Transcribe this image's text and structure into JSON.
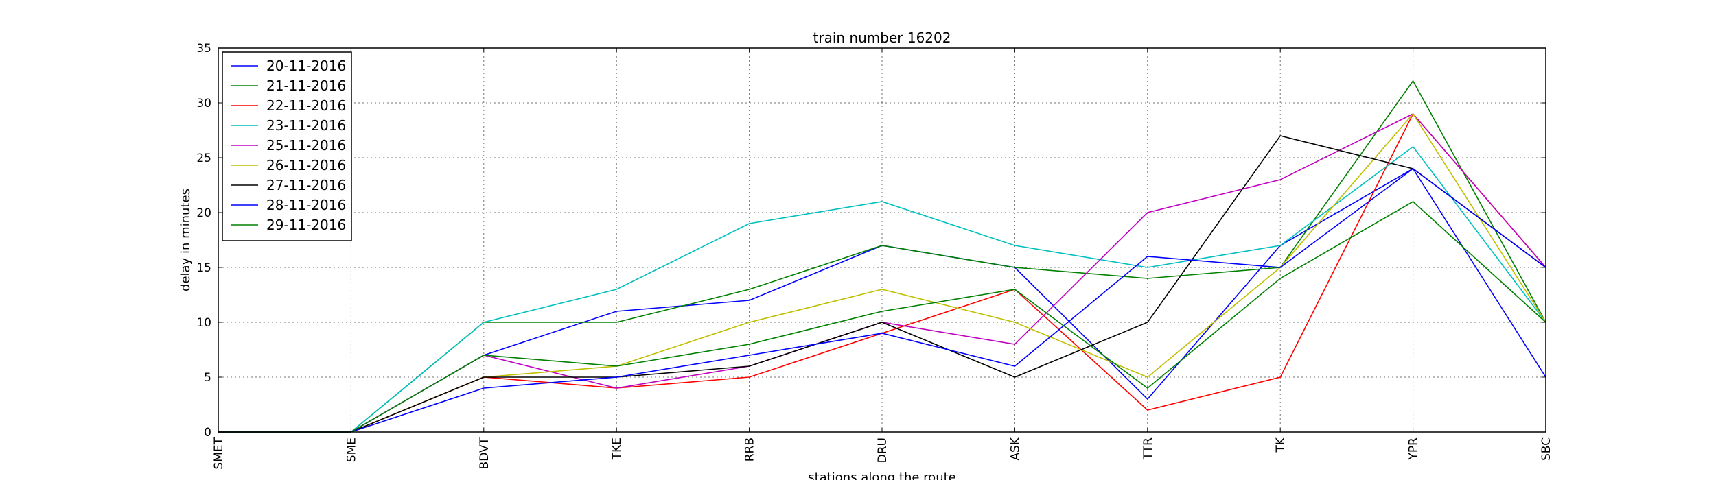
{
  "chart_data": {
    "type": "line",
    "title": "train number 16202",
    "xlabel": "stations along the route",
    "ylabel": "delay in minutes",
    "categories": [
      "SMET",
      "SME",
      "BDVT",
      "TKE",
      "RRB",
      "DRU",
      "ASK",
      "TTR",
      "TK",
      "YPR",
      "SBC"
    ],
    "ylim": [
      0,
      35
    ],
    "yticks": [
      0,
      5,
      10,
      15,
      20,
      25,
      30,
      35
    ],
    "grid": true,
    "legend_position": "upper-left",
    "series": [
      {
        "name": "20-11-2016",
        "color": "#0000ff",
        "values": [
          0,
          0,
          7,
          11,
          12,
          17,
          15,
          3,
          17,
          24,
          5
        ]
      },
      {
        "name": "21-11-2016",
        "color": "#008000",
        "values": [
          0,
          0,
          10,
          10,
          13,
          17,
          15,
          14,
          15,
          32,
          10
        ]
      },
      {
        "name": "22-11-2016",
        "color": "#ff0000",
        "values": [
          0,
          0,
          5,
          4,
          5,
          9,
          13,
          2,
          5,
          29,
          15
        ]
      },
      {
        "name": "23-11-2016",
        "color": "#00bfbf",
        "values": [
          0,
          0,
          10,
          13,
          19,
          21,
          17,
          15,
          17,
          26,
          10
        ]
      },
      {
        "name": "25-11-2016",
        "color": "#bf00bf",
        "values": [
          0,
          0,
          7,
          4,
          6,
          10,
          8,
          20,
          23,
          29,
          15
        ]
      },
      {
        "name": "26-11-2016",
        "color": "#bfbf00",
        "values": [
          0,
          0,
          5,
          6,
          10,
          13,
          10,
          5,
          15,
          29,
          10
        ]
      },
      {
        "name": "27-11-2016",
        "color": "#000000",
        "values": [
          0,
          0,
          5,
          5,
          6,
          10,
          5,
          10,
          27,
          24,
          15
        ]
      },
      {
        "name": "28-11-2016",
        "color": "#0000ff",
        "values": [
          0,
          0,
          4,
          5,
          7,
          9,
          6,
          16,
          15,
          24,
          15
        ]
      },
      {
        "name": "29-11-2016",
        "color": "#008000",
        "values": [
          0,
          0,
          7,
          6,
          8,
          11,
          13,
          4,
          14,
          21,
          10
        ]
      }
    ]
  }
}
